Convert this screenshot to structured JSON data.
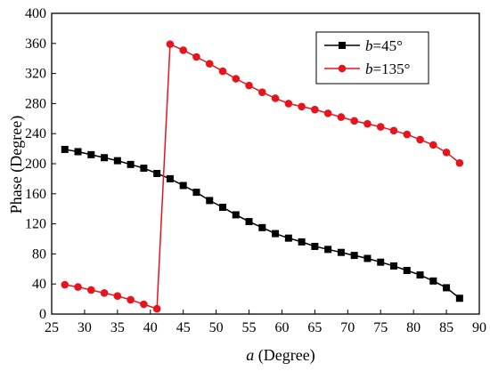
{
  "chart_data": {
    "type": "line",
    "title": "",
    "xlabel_var": "a",
    "xlabel_unit": " (Degree)",
    "ylabel": "Phase (Degree)",
    "xlim": [
      25,
      90
    ],
    "ylim": [
      0,
      400
    ],
    "xticks": [
      25,
      30,
      35,
      40,
      45,
      50,
      55,
      60,
      65,
      70,
      75,
      80,
      85,
      90
    ],
    "yticks": [
      0,
      40,
      80,
      120,
      160,
      200,
      240,
      280,
      320,
      360,
      400
    ],
    "grid": false,
    "legend_position": "top-right",
    "x": [
      27,
      29,
      31,
      33,
      35,
      37,
      39,
      41,
      43,
      45,
      47,
      49,
      51,
      53,
      55,
      57,
      59,
      61,
      63,
      65,
      67,
      69,
      71,
      73,
      75,
      77,
      79,
      81,
      83,
      85,
      87
    ],
    "series": [
      {
        "name_var": "b",
        "name_rest": "=45°",
        "color": "#000000",
        "marker": "square",
        "values": [
          219,
          216,
          212,
          208,
          204,
          199,
          194,
          187,
          180,
          171,
          162,
          151,
          142,
          132,
          123,
          115,
          107,
          101,
          96,
          90,
          86,
          82,
          78,
          74,
          69,
          64,
          58,
          52,
          44,
          35,
          21
        ]
      },
      {
        "name_var": "b",
        "name_rest": "=135°",
        "color": "#e8141c",
        "marker": "circle",
        "values": [
          39,
          36,
          32,
          28,
          24,
          19,
          13,
          7,
          359,
          351,
          342,
          333,
          323,
          313,
          304,
          295,
          287,
          280,
          276,
          272,
          267,
          262,
          257,
          253,
          249,
          244,
          239,
          232,
          225,
          215,
          201
        ]
      }
    ]
  }
}
